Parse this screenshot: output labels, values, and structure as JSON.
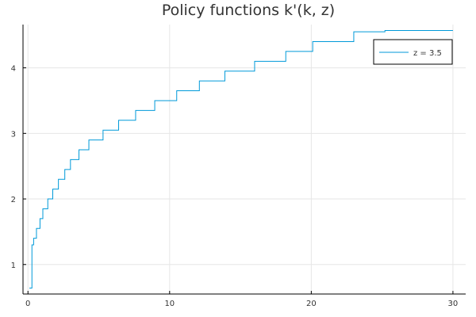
{
  "chart_data": {
    "type": "line",
    "title": "Policy functions k'(k, z)",
    "xlabel": "",
    "ylabel": "",
    "xlim": [
      -0.35,
      30.9
    ],
    "ylim": [
      0.55,
      4.66
    ],
    "xticks": [
      0,
      10,
      20,
      30
    ],
    "yticks": [
      1,
      2,
      3,
      4
    ],
    "grid": true,
    "legend_position": "top-right",
    "series": [
      {
        "name": "z = 3.5",
        "color": "#009AD9",
        "x": [
          0.1,
          0.28,
          0.4,
          0.6,
          0.85,
          1.05,
          1.4,
          1.75,
          2.15,
          2.6,
          3.0,
          3.6,
          4.3,
          5.3,
          6.4,
          7.6,
          8.95,
          10.5,
          12.1,
          13.9,
          16.0,
          18.2,
          20.1,
          23.0,
          25.2,
          26.6,
          28.6,
          30.0
        ],
        "y": [
          0.64,
          1.3,
          1.4,
          1.55,
          1.7,
          1.85,
          2.0,
          2.15,
          2.3,
          2.45,
          2.6,
          2.75,
          2.9,
          3.05,
          3.2,
          3.35,
          3.5,
          3.65,
          3.8,
          3.95,
          4.1,
          4.25,
          4.4,
          4.55,
          4.57,
          4.57,
          4.57,
          4.57
        ]
      }
    ]
  }
}
